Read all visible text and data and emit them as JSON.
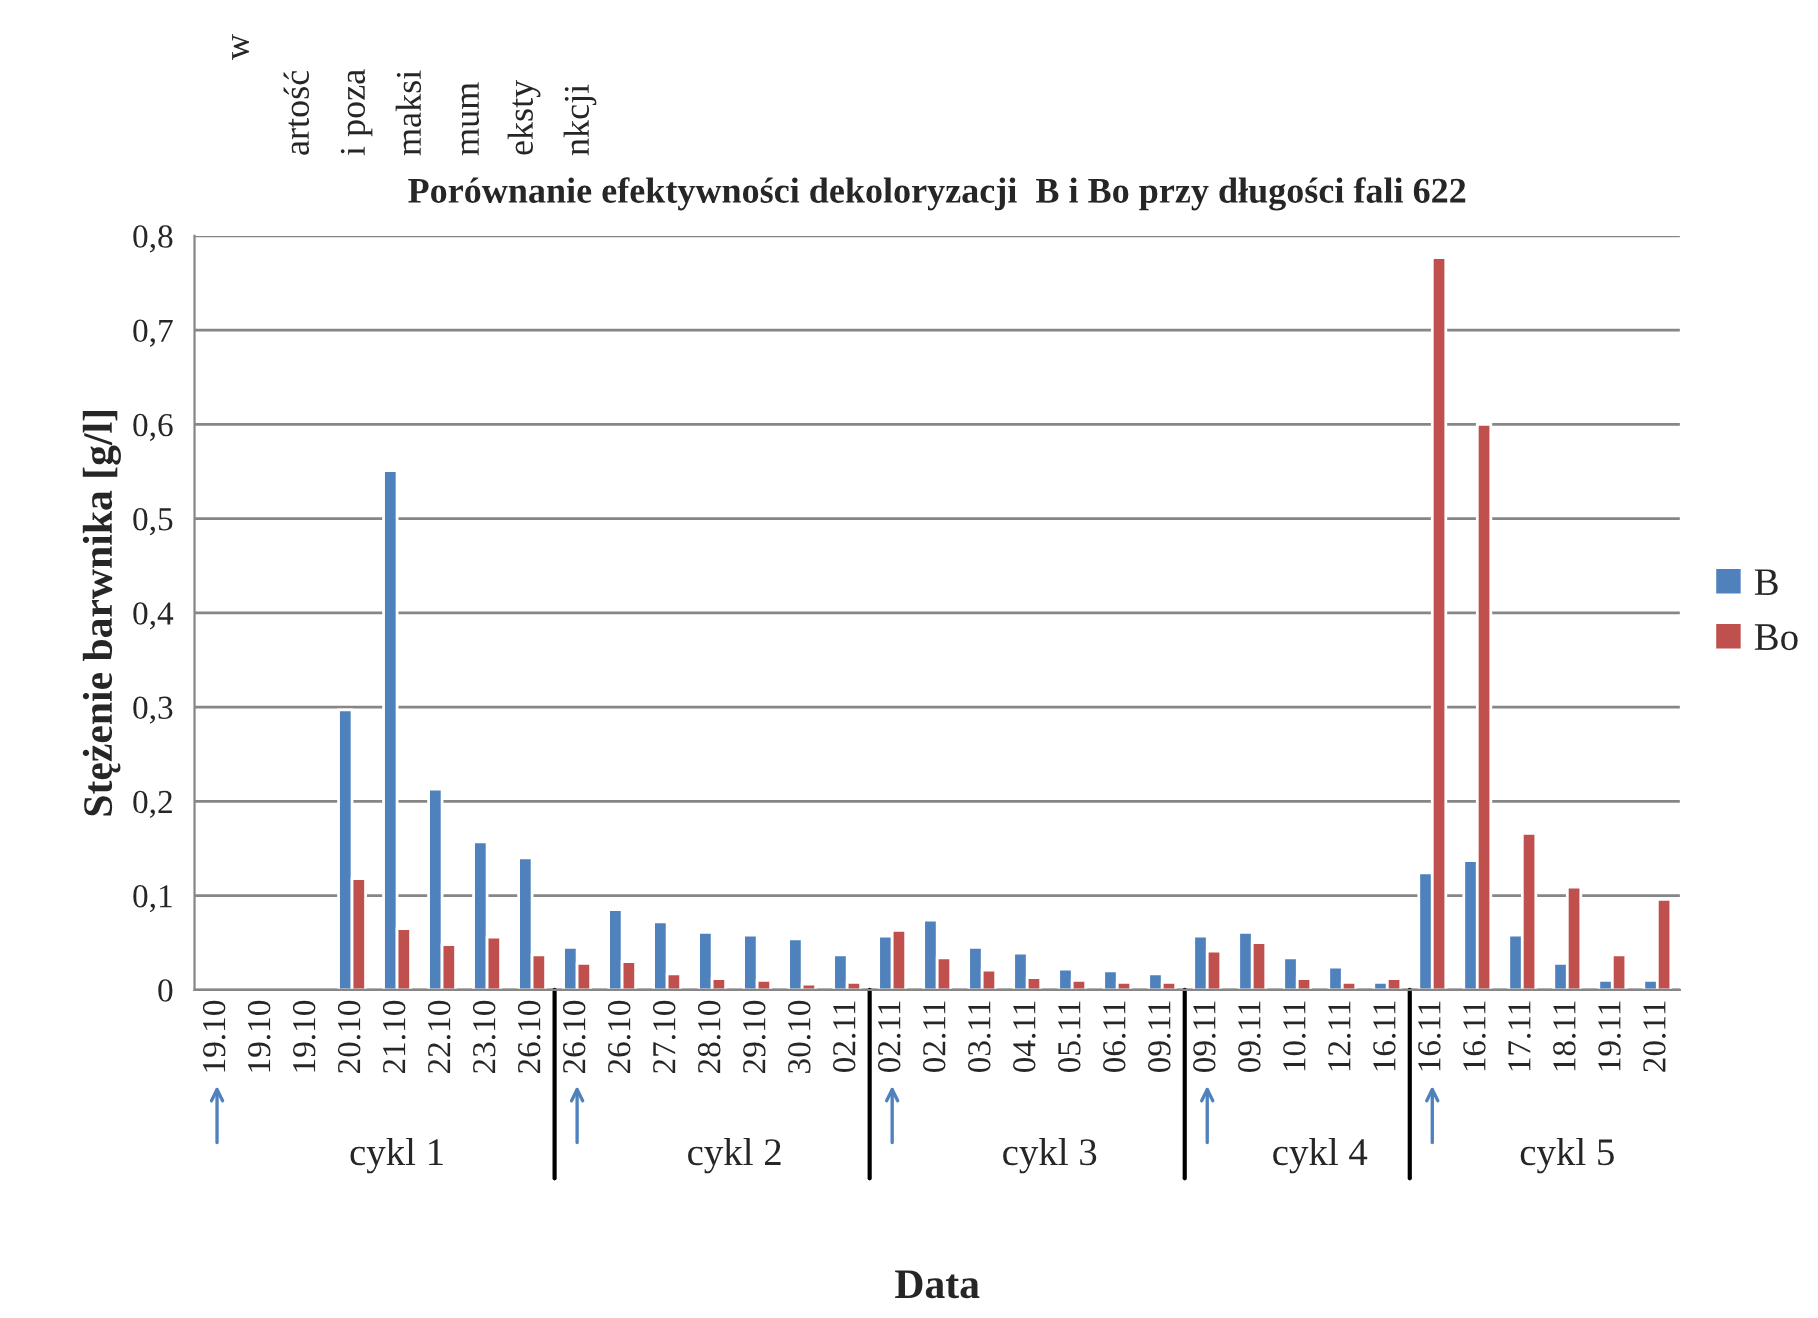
{
  "chart_data": {
    "type": "bar",
    "title": "Porównanie efektywności dekoloryzacji  B i Bo przy długości fali 622",
    "xlabel": "Data",
    "ylabel": "Stężenie barwnika [g/l]",
    "categories": [
      "19.10",
      "19.10",
      "19.10",
      "20.10",
      "21.10",
      "22.10",
      "23.10",
      "26.10",
      "26.10",
      "26.10",
      "27.10",
      "28.10",
      "29.10",
      "30.10",
      "02.11",
      "02.11",
      "02.11",
      "03.11",
      "04.11",
      "05.11",
      "06.11",
      "09.11",
      "09.11",
      "09.11",
      "10.11",
      "12.11",
      "16.11",
      "16.11",
      "16.11",
      "17.11",
      "18.11",
      "19.11",
      "20.11"
    ],
    "series": [
      {
        "name": "B",
        "color": "#4f81bd",
        "values": [
          null,
          null,
          null,
          0.297,
          0.551,
          0.213,
          0.157,
          0.14,
          0.045,
          0.085,
          0.072,
          0.061,
          0.058,
          0.054,
          0.037,
          0.057,
          0.074,
          0.045,
          0.039,
          0.022,
          0.02,
          0.017,
          0.057,
          0.061,
          0.034,
          0.024,
          0.008,
          0.124,
          0.137,
          0.058,
          0.028,
          0.01,
          0.01
        ]
      },
      {
        "name": "Bo",
        "color": "#c0504d",
        "values": [
          null,
          null,
          null,
          0.118,
          0.065,
          0.048,
          0.056,
          0.037,
          0.028,
          0.03,
          0.017,
          0.012,
          0.01,
          0.006,
          0.008,
          0.063,
          0.034,
          0.021,
          0.013,
          0.01,
          0.008,
          0.008,
          0.041,
          0.05,
          0.012,
          0.008,
          0.012,
          0.777,
          0.6,
          0.166,
          0.109,
          0.037,
          0.096
        ]
      }
    ],
    "ylim": [
      0,
      0.8
    ],
    "yticks": [
      {
        "value": 0,
        "label": "0"
      },
      {
        "value": 0.1,
        "label": "0,1"
      },
      {
        "value": 0.2,
        "label": "0,2"
      },
      {
        "value": 0.3,
        "label": "0,3"
      },
      {
        "value": 0.4,
        "label": "0,4"
      },
      {
        "value": 0.5,
        "label": "0,5"
      },
      {
        "value": 0.6,
        "label": "0,6"
      },
      {
        "value": 0.7,
        "label": "0,7"
      },
      {
        "value": 0.8,
        "label": "0,8"
      }
    ],
    "grid": "y",
    "legend": "right",
    "annotations": [
      "cykl 1",
      "cykl 2",
      "cykl 3",
      "cykl 4",
      "cykl 5",
      "w",
      "artość",
      "i poza",
      "maksi",
      "mum",
      "eksty",
      "nkcji"
    ]
  }
}
